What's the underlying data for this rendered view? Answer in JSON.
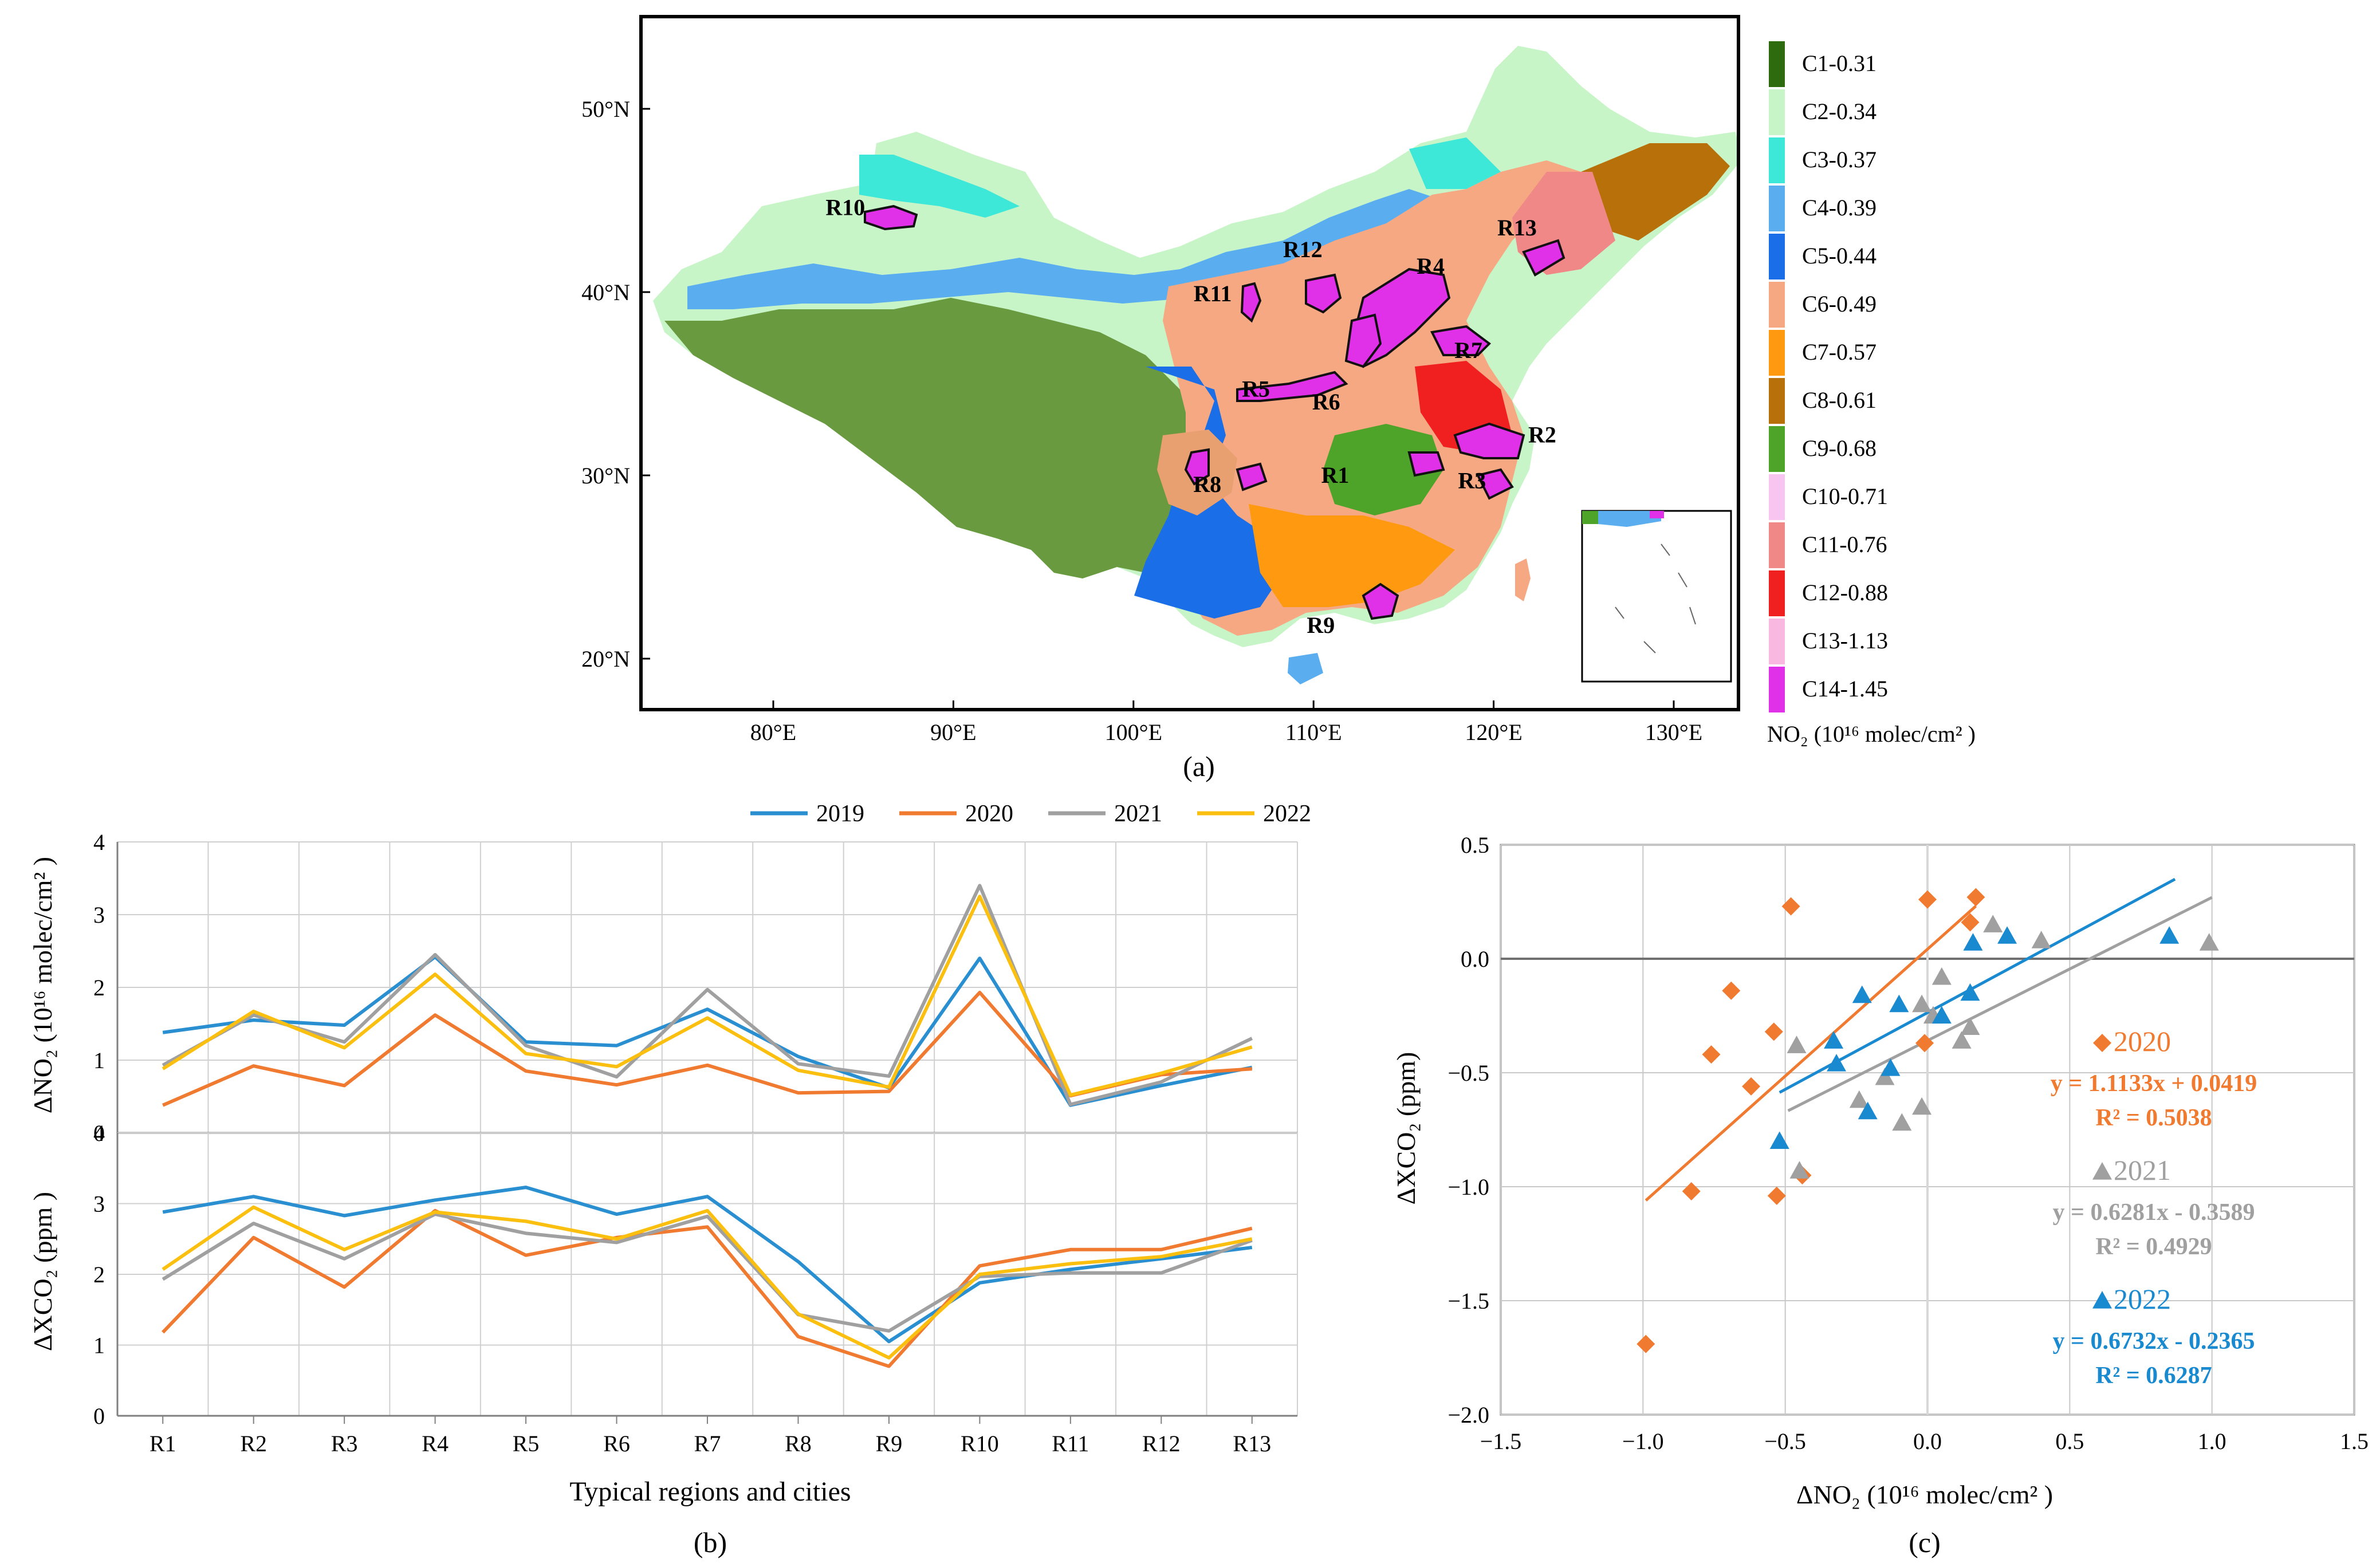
{
  "panel_a": {
    "caption": "(a)",
    "lat_ticks": [
      "50°N",
      "40°N",
      "30°N",
      "20°N"
    ],
    "lat_values": [
      50,
      40,
      30,
      20
    ],
    "lon_ticks": [
      "80°E",
      "90°E",
      "100°E",
      "110°E",
      "120°E",
      "130°E"
    ],
    "lon_values": [
      80,
      90,
      100,
      110,
      120,
      130
    ],
    "legend_title": "NO₂ (10¹⁶ molec/cm² )",
    "legend": [
      {
        "label": "C1-0.31",
        "color": "#2e6b0e"
      },
      {
        "label": "C2-0.34",
        "color": "#c8f5c8"
      },
      {
        "label": "C3-0.37",
        "color": "#3ee8d8"
      },
      {
        "label": "C4-0.39",
        "color": "#5aaef0"
      },
      {
        "label": "C5-0.44",
        "color": "#1a6fe8"
      },
      {
        "label": "C6-0.49",
        "color": "#f5a882"
      },
      {
        "label": "C7-0.57",
        "color": "#ff9a10"
      },
      {
        "label": "C8-0.61",
        "color": "#b8700a"
      },
      {
        "label": "C9-0.68",
        "color": "#4ea428"
      },
      {
        "label": "C10-0.71",
        "color": "#f8c4f0"
      },
      {
        "label": "C11-0.76",
        "color": "#f08888"
      },
      {
        "label": "C12-0.88",
        "color": "#f02020"
      },
      {
        "label": "C13-1.13",
        "color": "#f8b8e0"
      },
      {
        "label": "C14-1.45",
        "color": "#e030e8"
      }
    ],
    "regions": [
      {
        "label": "R1",
        "lon": 111.2,
        "lat": 29.6
      },
      {
        "label": "R2",
        "lon": 122.7,
        "lat": 31.8
      },
      {
        "label": "R3",
        "lon": 118.8,
        "lat": 29.3
      },
      {
        "label": "R4",
        "lon": 116.5,
        "lat": 41.0
      },
      {
        "label": "R5",
        "lon": 106.8,
        "lat": 34.3
      },
      {
        "label": "R6",
        "lon": 110.7,
        "lat": 33.6
      },
      {
        "label": "R7",
        "lon": 118.6,
        "lat": 36.4
      },
      {
        "label": "R8",
        "lon": 104.1,
        "lat": 29.1
      },
      {
        "label": "R9",
        "lon": 110.4,
        "lat": 21.4
      },
      {
        "label": "R10",
        "lon": 84.0,
        "lat": 44.2
      },
      {
        "label": "R11",
        "lon": 104.4,
        "lat": 39.5
      },
      {
        "label": "R12",
        "lon": 109.4,
        "lat": 41.9
      },
      {
        "label": "R13",
        "lon": 121.3,
        "lat": 43.1
      }
    ]
  },
  "panel_b": {
    "caption": "(b)",
    "legend": [
      {
        "name": "2019",
        "color": "#2a8fd0"
      },
      {
        "name": "2020",
        "color": "#f07a30"
      },
      {
        "name": "2021",
        "color": "#a0a0a0"
      },
      {
        "name": "2022",
        "color": "#fbbf10"
      }
    ],
    "xlabel": "Typical regions and cities",
    "categories": [
      "R1",
      "R2",
      "R3",
      "R4",
      "R5",
      "R6",
      "R7",
      "R8",
      "R9",
      "R10",
      "R11",
      "R12",
      "R13"
    ],
    "top_ylabel": "ΔNO₂ (10¹⁶ molec/cm² )",
    "bottom_ylabel": "ΔXCO₂ (ppm )",
    "yticks": [
      "0",
      "1",
      "2",
      "3",
      "4"
    ]
  },
  "panel_c": {
    "caption": "(c)",
    "xlabel": "ΔNO₂ (10¹⁶ molec/cm² )",
    "ylabel": "ΔXCO₂ (ppm)",
    "xticks": [
      "−1.5",
      "−1.0",
      "−0.5",
      "0.0",
      "0.5",
      "1.0",
      "1.5"
    ],
    "yticks": [
      "0.5",
      "0.0",
      "−0.5",
      "−1.0",
      "−1.5",
      "−2.0"
    ],
    "legend": [
      {
        "name": "2020",
        "eq": "y = 1.1133x + 0.0419",
        "r2": "R² = 0.5038",
        "color": "#f07a30",
        "marker": "diamond"
      },
      {
        "name": "2021",
        "eq": "y = 0.6281x - 0.3589",
        "r2": "R² = 0.4929",
        "color": "#a0a0a0",
        "marker": "triangle"
      },
      {
        "name": "2022",
        "eq": "y = 0.6732x - 0.2365",
        "r2": "R² = 0.6287",
        "color": "#1a8ad0",
        "marker": "triangle"
      }
    ]
  },
  "chart_data": [
    {
      "type": "line",
      "title": "",
      "categories": [
        "R1",
        "R2",
        "R3",
        "R4",
        "R5",
        "R6",
        "R7",
        "R8",
        "R9",
        "R10",
        "R11",
        "R12",
        "R13"
      ],
      "ylabel": "ΔNO₂ (10¹⁶ molec/cm² )",
      "ylim": [
        0,
        4
      ],
      "series": [
        {
          "name": "2019",
          "values": [
            1.38,
            1.55,
            1.48,
            2.42,
            1.25,
            1.2,
            1.7,
            1.05,
            0.62,
            2.4,
            0.38,
            0.65,
            0.9
          ]
        },
        {
          "name": "2020",
          "values": [
            0.38,
            0.92,
            0.65,
            1.62,
            0.85,
            0.66,
            0.93,
            0.55,
            0.57,
            1.93,
            0.51,
            0.8,
            0.88
          ]
        },
        {
          "name": "2021",
          "values": [
            0.93,
            1.62,
            1.25,
            2.45,
            1.2,
            0.77,
            1.97,
            0.95,
            0.78,
            3.4,
            0.39,
            0.7,
            1.3
          ]
        },
        {
          "name": "2022",
          "values": [
            0.88,
            1.67,
            1.17,
            2.18,
            1.09,
            0.91,
            1.58,
            0.86,
            0.63,
            3.25,
            0.52,
            0.82,
            1.18
          ]
        }
      ]
    },
    {
      "type": "line",
      "title": "",
      "categories": [
        "R1",
        "R2",
        "R3",
        "R4",
        "R5",
        "R6",
        "R7",
        "R8",
        "R9",
        "R10",
        "R11",
        "R12",
        "R13"
      ],
      "xlabel": "Typical regions and cities",
      "ylabel": "ΔXCO₂ (ppm )",
      "ylim": [
        0,
        4
      ],
      "series": [
        {
          "name": "2019",
          "values": [
            2.88,
            3.1,
            2.83,
            3.05,
            3.23,
            2.85,
            3.1,
            2.18,
            1.05,
            1.88,
            2.07,
            2.22,
            2.38
          ]
        },
        {
          "name": "2020",
          "values": [
            1.18,
            2.52,
            1.82,
            2.9,
            2.27,
            2.52,
            2.67,
            1.12,
            0.7,
            2.12,
            2.35,
            2.35,
            2.65
          ]
        },
        {
          "name": "2021",
          "values": [
            1.93,
            2.72,
            2.22,
            2.85,
            2.58,
            2.45,
            2.82,
            1.43,
            1.2,
            1.97,
            2.02,
            2.02,
            2.48
          ]
        },
        {
          "name": "2022",
          "values": [
            2.07,
            2.95,
            2.35,
            2.88,
            2.75,
            2.5,
            2.9,
            1.44,
            0.82,
            2.0,
            2.15,
            2.25,
            2.5
          ]
        }
      ]
    },
    {
      "type": "scatter",
      "title": "",
      "xlabel": "ΔNO₂ (10¹⁶ molec/cm² )",
      "ylabel": "ΔXCO₂ (ppm)",
      "xlim": [
        -1.5,
        1.5
      ],
      "ylim": [
        -2.0,
        0.5
      ],
      "series": [
        {
          "name": "2020",
          "x": [
            -0.99,
            -0.83,
            -0.76,
            -0.69,
            -0.62,
            -0.54,
            -0.53,
            -0.48,
            -0.44,
            -0.01,
            0.0,
            0.15,
            0.17
          ],
          "y": [
            -1.69,
            -1.02,
            -0.42,
            -0.14,
            -0.56,
            -0.32,
            -1.04,
            0.23,
            -0.95,
            -0.37,
            0.26,
            0.16,
            0.27
          ],
          "fit": {
            "slope": 1.1133,
            "intercept": 0.0419,
            "x_range": [
              -0.99,
              0.17
            ]
          }
        },
        {
          "name": "2021",
          "x": [
            -0.46,
            -0.45,
            -0.24,
            -0.15,
            -0.09,
            -0.02,
            -0.02,
            0.02,
            0.05,
            0.12,
            0.15,
            0.23,
            0.4,
            0.99
          ],
          "y": [
            -0.38,
            -0.93,
            -0.62,
            -0.52,
            -0.72,
            -0.2,
            -0.65,
            -0.25,
            -0.08,
            -0.36,
            -0.3,
            0.15,
            0.08,
            0.07
          ],
          "fit": {
            "slope": 0.6281,
            "intercept": -0.3589,
            "x_range": [
              -0.49,
              1.0
            ]
          }
        },
        {
          "name": "2022",
          "x": [
            -0.52,
            -0.33,
            -0.32,
            -0.23,
            -0.21,
            -0.13,
            -0.1,
            0.05,
            0.15,
            0.16,
            0.28,
            0.85
          ],
          "y": [
            -0.8,
            -0.36,
            -0.46,
            -0.16,
            -0.67,
            -0.48,
            -0.2,
            -0.25,
            -0.15,
            0.07,
            0.1,
            0.1
          ],
          "fit": {
            "slope": 0.6732,
            "intercept": -0.2365,
            "x_range": [
              -0.52,
              0.87
            ]
          }
        }
      ]
    }
  ]
}
